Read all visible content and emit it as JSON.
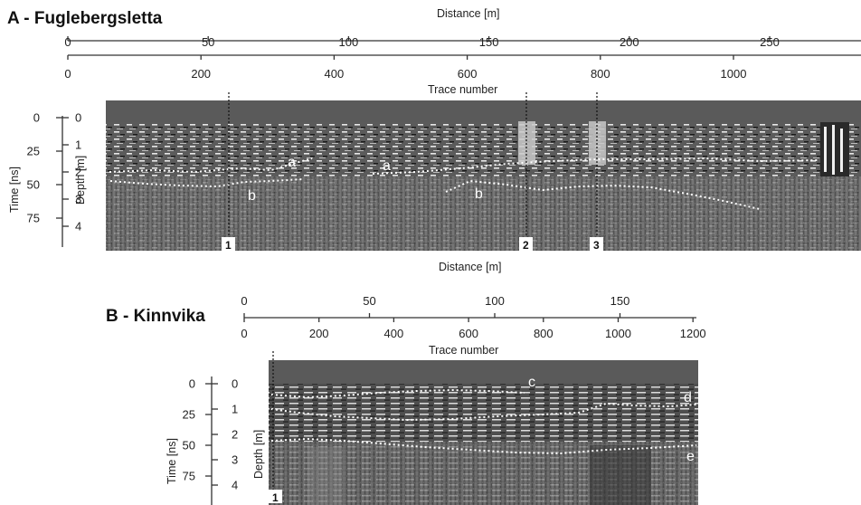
{
  "panel_a": {
    "title": "A - Fuglebergsletta",
    "distance_label_top": "Distance [m]",
    "distance_ticks": [
      "0",
      "50",
      "100",
      "150",
      "200",
      "250"
    ],
    "trace_ticks": [
      "0",
      "200",
      "400",
      "600",
      "800",
      "1000"
    ],
    "trace_label": "Trace number",
    "distance_label_bottom": "Distance [m]",
    "time_label": "Time [ns]",
    "time_ticks": [
      "0",
      "25",
      "50",
      "75"
    ],
    "depth_label": "Depth [m]",
    "depth_ticks": [
      "0",
      "1",
      "2",
      "3",
      "4"
    ],
    "reflector_labels": [
      "a",
      "a",
      "b",
      "b"
    ],
    "markers": [
      "1",
      "2",
      "3"
    ]
  },
  "panel_b": {
    "title": "B - Kinnvika",
    "distance_ticks": [
      "0",
      "50",
      "100",
      "150"
    ],
    "trace_ticks": [
      "0",
      "200",
      "400",
      "600",
      "800",
      "1000",
      "1200"
    ],
    "trace_label": "Trace number",
    "time_label": "Time [ns]",
    "time_ticks": [
      "0",
      "25",
      "50",
      "75"
    ],
    "depth_label": "Depth [m]",
    "depth_ticks": [
      "0",
      "1",
      "2",
      "3",
      "4"
    ],
    "reflector_labels": [
      "c",
      "d",
      "e"
    ],
    "markers": [
      "1"
    ]
  }
}
